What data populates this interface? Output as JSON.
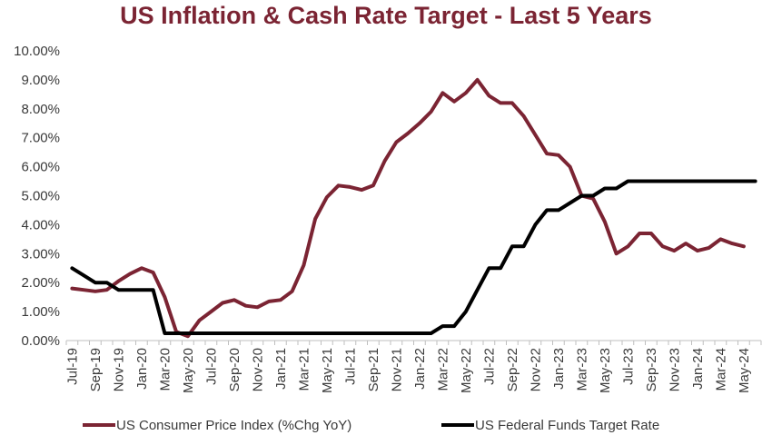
{
  "chart_data": {
    "type": "line",
    "title": "US Inflation & Cash Rate Target - Last 5 Years",
    "xlabel": "",
    "ylabel": "",
    "ylim": [
      0,
      10
    ],
    "yticks": [
      "0.00%",
      "1.00%",
      "2.00%",
      "3.00%",
      "4.00%",
      "5.00%",
      "6.00%",
      "7.00%",
      "8.00%",
      "9.00%",
      "10.00%"
    ],
    "xticks": [
      "Jul-19",
      "Sep-19",
      "Nov-19",
      "Jan-20",
      "Mar-20",
      "May-20",
      "Jul-20",
      "Sep-20",
      "Nov-20",
      "Jan-21",
      "Mar-21",
      "May-21",
      "Jul-21",
      "Sep-21",
      "Nov-21",
      "Jan-22",
      "Mar-22",
      "May-22",
      "Jul-22",
      "Sep-22",
      "Nov-22",
      "Jan-23",
      "Mar-23",
      "May-23",
      "Jul-23",
      "Sep-23",
      "Nov-23",
      "Jan-24",
      "Mar-24",
      "May-24"
    ],
    "categories": [
      "Jul-19",
      "Aug-19",
      "Sep-19",
      "Oct-19",
      "Nov-19",
      "Dec-19",
      "Jan-20",
      "Feb-20",
      "Mar-20",
      "Apr-20",
      "May-20",
      "Jun-20",
      "Jul-20",
      "Aug-20",
      "Sep-20",
      "Oct-20",
      "Nov-20",
      "Dec-20",
      "Jan-21",
      "Feb-21",
      "Mar-21",
      "Apr-21",
      "May-21",
      "Jun-21",
      "Jul-21",
      "Aug-21",
      "Sep-21",
      "Oct-21",
      "Nov-21",
      "Dec-21",
      "Jan-22",
      "Feb-22",
      "Mar-22",
      "Apr-22",
      "May-22",
      "Jun-22",
      "Jul-22",
      "Aug-22",
      "Sep-22",
      "Oct-22",
      "Nov-22",
      "Dec-22",
      "Jan-23",
      "Feb-23",
      "Mar-23",
      "Apr-23",
      "May-23",
      "Jun-23",
      "Jul-23",
      "Aug-23",
      "Sep-23",
      "Oct-23",
      "Nov-23",
      "Dec-23",
      "Jan-24",
      "Feb-24",
      "Mar-24",
      "Apr-24",
      "May-24",
      "Jun-24"
    ],
    "series": [
      {
        "name": "US Consumer Price Index (%Chg YoY)",
        "color": "#7b2433",
        "values": [
          1.8,
          1.75,
          1.7,
          1.75,
          2.05,
          2.3,
          2.5,
          2.35,
          1.5,
          0.3,
          0.15,
          0.7,
          1.0,
          1.3,
          1.4,
          1.2,
          1.15,
          1.35,
          1.4,
          1.7,
          2.6,
          4.2,
          4.95,
          5.35,
          5.3,
          5.2,
          5.35,
          6.2,
          6.85,
          7.15,
          7.5,
          7.9,
          8.55,
          8.25,
          8.55,
          9.0,
          8.45,
          8.2,
          8.2,
          7.75,
          7.1,
          6.45,
          6.4,
          6.0,
          5.0,
          4.9,
          4.1,
          3.0,
          3.25,
          3.7,
          3.7,
          3.25,
          3.1,
          3.35,
          3.1,
          3.2,
          3.5,
          3.35,
          3.25,
          null
        ]
      },
      {
        "name": "US Federal Funds Target Rate",
        "color": "#000000",
        "values": [
          2.5,
          2.25,
          2.0,
          2.0,
          1.75,
          1.75,
          1.75,
          1.75,
          0.25,
          0.25,
          0.25,
          0.25,
          0.25,
          0.25,
          0.25,
          0.25,
          0.25,
          0.25,
          0.25,
          0.25,
          0.25,
          0.25,
          0.25,
          0.25,
          0.25,
          0.25,
          0.25,
          0.25,
          0.25,
          0.25,
          0.25,
          0.25,
          0.5,
          0.5,
          1.0,
          1.75,
          2.5,
          2.5,
          3.25,
          3.25,
          4.0,
          4.5,
          4.5,
          4.75,
          5.0,
          5.0,
          5.25,
          5.25,
          5.5,
          5.5,
          5.5,
          5.5,
          5.5,
          5.5,
          5.5,
          5.5,
          5.5,
          5.5,
          5.5,
          5.5
        ]
      }
    ],
    "legend_position": "bottom",
    "grid": false
  }
}
